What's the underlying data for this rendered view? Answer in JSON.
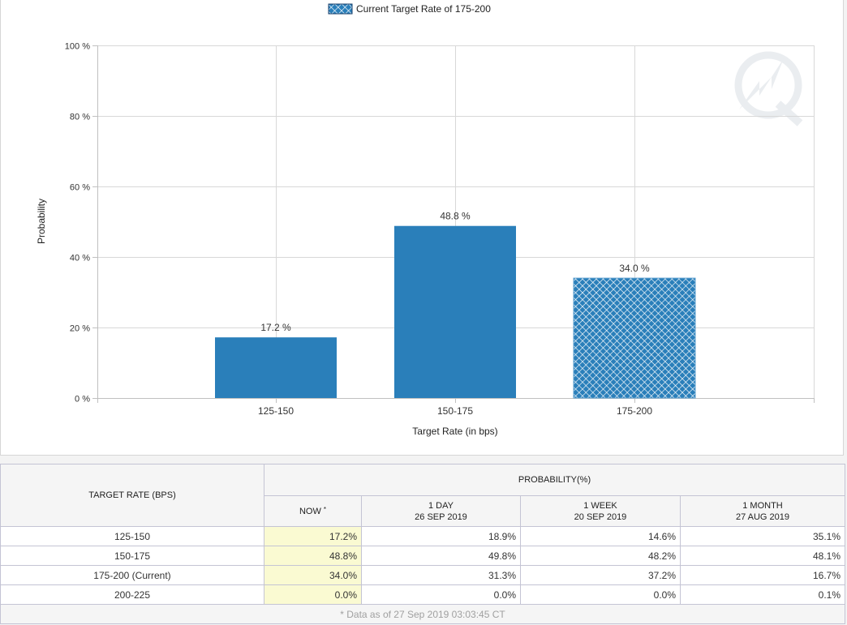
{
  "chart_data": {
    "type": "bar",
    "title": "",
    "legend": {
      "label": "Current Target Rate of 175-200",
      "position": "top"
    },
    "categories": [
      "125-150",
      "150-175",
      "175-200"
    ],
    "values": [
      17.2,
      48.8,
      34.0
    ],
    "data_labels": [
      "17.2 %",
      "48.8 %",
      "34.0 %"
    ],
    "highlighted_category": "175-200",
    "xlabel": "Target Rate (in bps)",
    "ylabel": "Probability",
    "ylim": [
      0,
      100
    ],
    "yticks": [
      0,
      20,
      40,
      60,
      80,
      100
    ],
    "ytick_labels": [
      "0 %",
      "20 %",
      "40 %",
      "60 %",
      "80 %",
      "100 %"
    ],
    "grid": true,
    "colors": {
      "bar": "#2a7fba",
      "hatch": "#ffffff",
      "grid": "#d8d8d8"
    }
  },
  "table": {
    "header_rate": "TARGET RATE (BPS)",
    "header_probability": "PROBABILITY(%)",
    "columns": [
      {
        "line1": "NOW",
        "marker": "*",
        "line2": ""
      },
      {
        "line1": "1 DAY",
        "line2": "26 SEP 2019"
      },
      {
        "line1": "1 WEEK",
        "line2": "20 SEP 2019"
      },
      {
        "line1": "1 MONTH",
        "line2": "27 AUG 2019"
      }
    ],
    "rows": [
      {
        "rate": "125-150",
        "values": [
          "17.2%",
          "18.9%",
          "14.6%",
          "35.1%"
        ]
      },
      {
        "rate": "150-175",
        "values": [
          "48.8%",
          "49.8%",
          "48.2%",
          "48.1%"
        ]
      },
      {
        "rate": "175-200 (Current)",
        "values": [
          "34.0%",
          "31.3%",
          "37.2%",
          "16.7%"
        ]
      },
      {
        "rate": "200-225",
        "values": [
          "0.0%",
          "0.0%",
          "0.0%",
          "0.1%"
        ]
      }
    ],
    "footnote": "* Data as of 27 Sep 2019 03:03:45 CT",
    "now_highlight_color": "#fafad2"
  }
}
